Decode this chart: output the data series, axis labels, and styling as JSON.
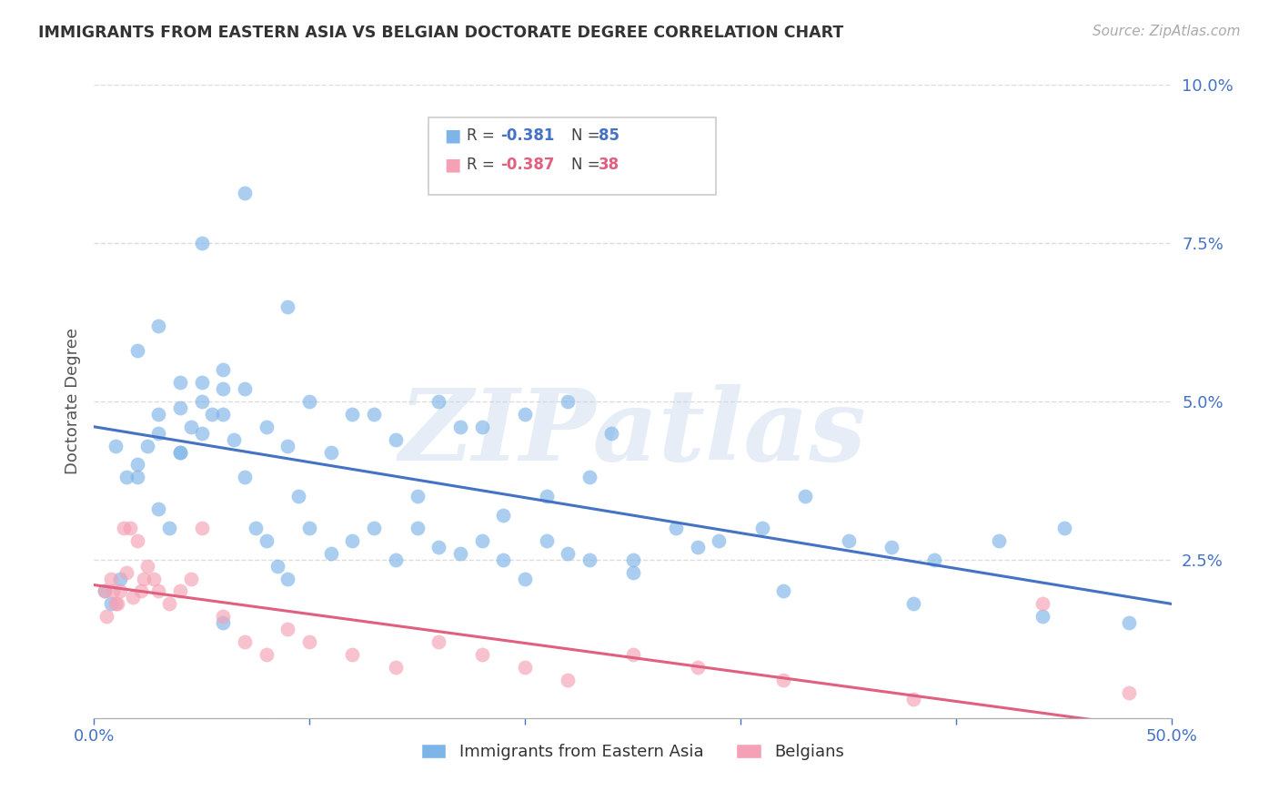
{
  "title": "IMMIGRANTS FROM EASTERN ASIA VS BELGIAN DOCTORATE DEGREE CORRELATION CHART",
  "source": "Source: ZipAtlas.com",
  "ylabel": "Doctorate Degree",
  "xlim": [
    0.0,
    0.5
  ],
  "ylim": [
    0.0,
    0.1
  ],
  "yticks": [
    0.0,
    0.025,
    0.05,
    0.075,
    0.1
  ],
  "ytick_labels": [
    "",
    "2.5%",
    "5.0%",
    "7.5%",
    "10.0%"
  ],
  "xticks": [
    0.0,
    0.1,
    0.2,
    0.3,
    0.4,
    0.5
  ],
  "xtick_labels": [
    "0.0%",
    "",
    "",
    "",
    "",
    "50.0%"
  ],
  "background_color": "#ffffff",
  "grid_color": "#dddddd",
  "watermark": "ZIPatlas",
  "blue_color": "#7EB5E8",
  "pink_color": "#F5A0B5",
  "blue_line_color": "#4472C4",
  "pink_line_color": "#E06080",
  "title_color": "#333333",
  "tick_color": "#4472C4",
  "blue_scatter_x": [
    0.02,
    0.03,
    0.04,
    0.01,
    0.02,
    0.03,
    0.04,
    0.05,
    0.06,
    0.03,
    0.04,
    0.05,
    0.06,
    0.07,
    0.08,
    0.09,
    0.1,
    0.12,
    0.14,
    0.16,
    0.18,
    0.2,
    0.22,
    0.24,
    0.05,
    0.07,
    0.09,
    0.11,
    0.13,
    0.15,
    0.17,
    0.19,
    0.21,
    0.23,
    0.25,
    0.27,
    0.29,
    0.31,
    0.33,
    0.35,
    0.37,
    0.39,
    0.42,
    0.45,
    0.48,
    0.02,
    0.025,
    0.015,
    0.03,
    0.035,
    0.04,
    0.045,
    0.05,
    0.055,
    0.06,
    0.065,
    0.07,
    0.075,
    0.08,
    0.085,
    0.09,
    0.095,
    0.1,
    0.11,
    0.12,
    0.13,
    0.14,
    0.15,
    0.16,
    0.17,
    0.18,
    0.19,
    0.2,
    0.21,
    0.22,
    0.23,
    0.25,
    0.28,
    0.32,
    0.38,
    0.44,
    0.005,
    0.008,
    0.012,
    0.06
  ],
  "blue_scatter_y": [
    0.058,
    0.048,
    0.053,
    0.043,
    0.038,
    0.045,
    0.042,
    0.05,
    0.055,
    0.062,
    0.049,
    0.045,
    0.048,
    0.052,
    0.046,
    0.043,
    0.05,
    0.048,
    0.044,
    0.05,
    0.046,
    0.048,
    0.05,
    0.045,
    0.075,
    0.083,
    0.065,
    0.042,
    0.048,
    0.035,
    0.046,
    0.032,
    0.035,
    0.038,
    0.025,
    0.03,
    0.028,
    0.03,
    0.035,
    0.028,
    0.027,
    0.025,
    0.028,
    0.03,
    0.015,
    0.04,
    0.043,
    0.038,
    0.033,
    0.03,
    0.042,
    0.046,
    0.053,
    0.048,
    0.052,
    0.044,
    0.038,
    0.03,
    0.028,
    0.024,
    0.022,
    0.035,
    0.03,
    0.026,
    0.028,
    0.03,
    0.025,
    0.03,
    0.027,
    0.026,
    0.028,
    0.025,
    0.022,
    0.028,
    0.026,
    0.025,
    0.023,
    0.027,
    0.02,
    0.018,
    0.016,
    0.02,
    0.018,
    0.022,
    0.015
  ],
  "pink_scatter_x": [
    0.005,
    0.008,
    0.01,
    0.012,
    0.015,
    0.018,
    0.02,
    0.022,
    0.025,
    0.028,
    0.03,
    0.035,
    0.04,
    0.045,
    0.05,
    0.06,
    0.07,
    0.08,
    0.09,
    0.1,
    0.12,
    0.14,
    0.16,
    0.18,
    0.2,
    0.22,
    0.25,
    0.28,
    0.32,
    0.38,
    0.44,
    0.48,
    0.006,
    0.009,
    0.011,
    0.014,
    0.017,
    0.023
  ],
  "pink_scatter_y": [
    0.02,
    0.022,
    0.018,
    0.02,
    0.023,
    0.019,
    0.028,
    0.02,
    0.024,
    0.022,
    0.02,
    0.018,
    0.02,
    0.022,
    0.03,
    0.016,
    0.012,
    0.01,
    0.014,
    0.012,
    0.01,
    0.008,
    0.012,
    0.01,
    0.008,
    0.006,
    0.01,
    0.008,
    0.006,
    0.003,
    0.018,
    0.004,
    0.016,
    0.02,
    0.018,
    0.03,
    0.03,
    0.022
  ],
  "blue_line_x": [
    0.0,
    0.5
  ],
  "blue_line_y": [
    0.046,
    0.018
  ],
  "pink_line_x": [
    0.0,
    0.5
  ],
  "pink_line_y": [
    0.021,
    -0.002
  ],
  "legend_r1": "-0.381",
  "legend_n1": "85",
  "legend_r2": "-0.387",
  "legend_n2": "38"
}
